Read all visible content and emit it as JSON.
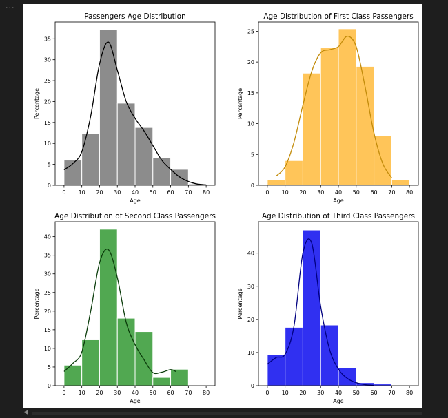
{
  "window": {
    "ellipsis": "..."
  },
  "chart_data": [
    {
      "type": "bar",
      "title": "Passengers Age Distribution",
      "xlabel": "Age",
      "ylabel": "Percentage",
      "xlim": [
        -5,
        85
      ],
      "ylim": [
        0,
        39
      ],
      "xticks": [
        0,
        10,
        20,
        30,
        40,
        50,
        60,
        70,
        80
      ],
      "yticks": [
        0,
        5,
        10,
        15,
        20,
        25,
        30,
        35
      ],
      "bin_edges": [
        0,
        10,
        20,
        30,
        40,
        50,
        60,
        70,
        80
      ],
      "values": [
        6.0,
        12.3,
        37.2,
        19.6,
        13.8,
        6.5,
        3.8,
        0.3
      ],
      "kde_x": [
        0,
        5,
        10,
        15,
        20,
        25,
        30,
        35,
        40,
        45,
        50,
        55,
        60,
        65,
        70,
        75,
        80
      ],
      "kde_y": [
        3.7,
        5.2,
        8.0,
        16.5,
        29.0,
        34.2,
        27.5,
        20.0,
        16.0,
        13.0,
        9.5,
        6.0,
        3.8,
        2.0,
        0.9,
        0.3,
        0.1
      ],
      "bar_color": "#808080",
      "line_color": "#000000"
    },
    {
      "type": "bar",
      "title": "Age Distribution of First Class Passengers",
      "xlabel": "Age",
      "ylabel": "Percentage",
      "xlim": [
        -5,
        85
      ],
      "ylim": [
        0,
        26.5
      ],
      "xticks": [
        0,
        10,
        20,
        30,
        40,
        50,
        60,
        70,
        80
      ],
      "yticks": [
        0,
        5,
        10,
        15,
        20,
        25
      ],
      "bin_edges": [
        0,
        10,
        20,
        30,
        40,
        50,
        60,
        70,
        80
      ],
      "values": [
        0.9,
        4.0,
        18.2,
        22.3,
        25.4,
        19.3,
        8.0,
        0.9
      ],
      "kde_x": [
        5,
        10,
        15,
        20,
        25,
        30,
        35,
        40,
        45,
        50,
        55,
        60,
        65,
        70
      ],
      "kde_y": [
        1.5,
        3.0,
        7.0,
        13.0,
        18.5,
        21.5,
        22.0,
        22.5,
        24.2,
        22.5,
        16.0,
        8.5,
        3.5,
        1.2
      ],
      "bar_color": "#FFBF47",
      "line_color": "#C28B0A"
    },
    {
      "type": "bar",
      "title": "Age Distribution of Second Class Passengers",
      "xlabel": "Age",
      "ylabel": "Percentage",
      "xlim": [
        -5,
        85
      ],
      "ylim": [
        0,
        44
      ],
      "xticks": [
        0,
        10,
        20,
        30,
        40,
        50,
        60,
        70,
        80
      ],
      "yticks": [
        0,
        5,
        10,
        15,
        20,
        25,
        30,
        35,
        40
      ],
      "bin_edges": [
        0,
        10,
        20,
        30,
        40,
        50,
        60,
        70
      ],
      "values": [
        5.5,
        12.3,
        42.0,
        18.1,
        14.5,
        2.2,
        4.4
      ],
      "kde_x": [
        0,
        5,
        10,
        15,
        20,
        25,
        30,
        35,
        40,
        45,
        50,
        55,
        60,
        63
      ],
      "kde_y": [
        3.8,
        6.0,
        9.0,
        20.0,
        33.0,
        36.5,
        29.0,
        17.0,
        11.0,
        7.0,
        3.5,
        3.6,
        4.3,
        3.8
      ],
      "bar_color": "#3E9E3E",
      "line_color": "#0B3D0B"
    },
    {
      "type": "bar",
      "title": "Age Distribution of Third Class Passengers",
      "xlabel": "Age",
      "ylabel": "Percentage",
      "xlim": [
        -5,
        85
      ],
      "ylim": [
        0,
        49.5
      ],
      "xticks": [
        0,
        10,
        20,
        30,
        40,
        50,
        60,
        70,
        80
      ],
      "yticks": [
        0,
        10,
        20,
        30,
        40
      ],
      "bin_edges": [
        0,
        10,
        20,
        30,
        40,
        50,
        60,
        70
      ],
      "values": [
        9.4,
        17.6,
        47.0,
        18.3,
        5.4,
        0.9,
        0.5
      ],
      "kde_x": [
        0,
        5,
        10,
        15,
        20,
        25,
        30,
        35,
        40,
        45,
        50,
        55,
        60
      ],
      "kde_y": [
        6.5,
        8.5,
        9.5,
        18.0,
        40.0,
        43.0,
        24.0,
        11.0,
        5.0,
        2.2,
        0.9,
        0.3,
        0.1
      ],
      "bar_color": "#1A1AF0",
      "line_color": "#000080"
    }
  ]
}
